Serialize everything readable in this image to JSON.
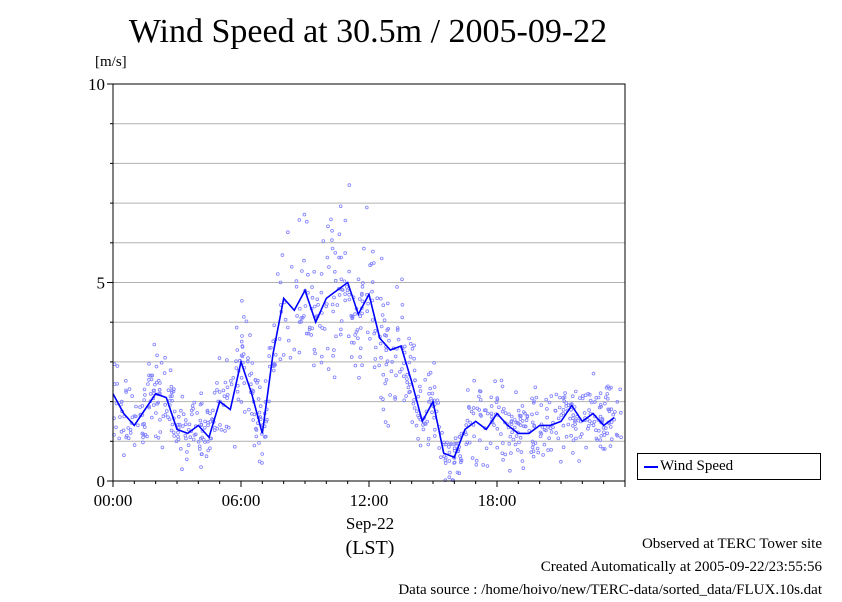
{
  "title": "Wind Speed at 30.5m / 2005-09-22",
  "y_unit": "[m/s]",
  "date_label": "Sep-22",
  "timezone_label": "(LST)",
  "legend_label": "Wind Speed",
  "notes": {
    "line1": "Observed at TERC Tower site",
    "line2": "Created Automatically at 2005-09-22/23:55:56",
    "line3": "Data source : /home/hoivo/new/TERC-data/sorted_data/FLUX.10s.dat"
  },
  "colors": {
    "line": "#0000ff",
    "points": "#8080ff",
    "grid": "#b0b0b0"
  },
  "chart_data": {
    "type": "line",
    "xlabel": "",
    "ylabel": "[m/s]",
    "ylim": [
      0,
      10
    ],
    "xlim": [
      "00:00",
      "24:00"
    ],
    "xtick_labels": [
      "00:00",
      "06:00",
      "12:00",
      "18:00"
    ],
    "ytick_labels": [
      "0",
      "5",
      "10"
    ],
    "grid": true,
    "legend": "right",
    "series": [
      {
        "name": "Wind Speed",
        "style": "line with scatter of raw samples",
        "x_hours": [
          0,
          0.5,
          1,
          1.5,
          2,
          2.5,
          3,
          3.5,
          4,
          4.5,
          5,
          5.5,
          6,
          6.5,
          7,
          7.5,
          8,
          8.5,
          9,
          9.5,
          10,
          10.5,
          11,
          11.5,
          12,
          12.5,
          13,
          13.5,
          14,
          14.5,
          15,
          15.5,
          16,
          16.5,
          17,
          17.5,
          18,
          18.5,
          19,
          19.5,
          20,
          20.5,
          21,
          21.5,
          22,
          22.5,
          23,
          23.5
        ],
        "values": [
          2.2,
          1.7,
          1.4,
          1.8,
          2.2,
          2.1,
          1.3,
          1.2,
          1.4,
          1.1,
          2.0,
          1.8,
          3.0,
          2.2,
          1.2,
          3.2,
          4.6,
          4.3,
          4.8,
          4.0,
          4.6,
          4.8,
          5.0,
          4.2,
          4.7,
          3.6,
          3.3,
          3.4,
          2.5,
          1.5,
          2.0,
          0.7,
          0.6,
          1.3,
          1.5,
          1.3,
          1.7,
          1.4,
          1.2,
          1.2,
          1.4,
          1.4,
          1.5,
          1.9,
          1.5,
          1.7,
          1.4,
          1.6
        ]
      }
    ]
  }
}
